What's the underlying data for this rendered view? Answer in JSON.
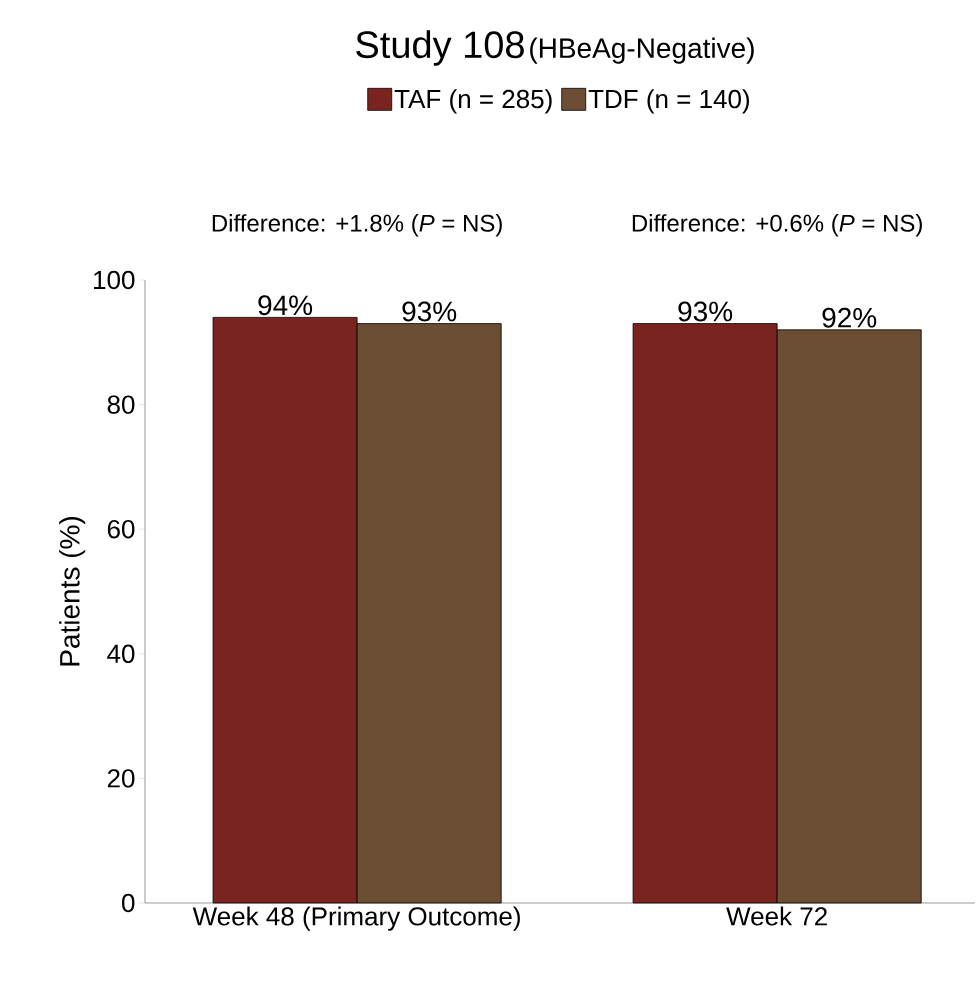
{
  "chart_data": {
    "type": "bar",
    "title": "Study 108",
    "subtitle": "(HBeAg-Negative)",
    "ylabel": "Patients (%)",
    "categories": [
      "Week 48 (Primary Outcome)",
      "Week 72"
    ],
    "series": [
      {
        "name": "TAF (n = 285)",
        "color": "#7a2420",
        "values": [
          94,
          93
        ],
        "value_labels": [
          "94%",
          "93%"
        ]
      },
      {
        "name": "TDF (n = 140)",
        "color": "#6b4e33",
        "values": [
          93,
          92
        ],
        "value_labels": [
          "93%",
          "92%"
        ]
      }
    ],
    "annotations": [
      "Difference: +1.8% (*P* = NS)",
      "Difference: +0.6% (*P* = NS)"
    ],
    "ylim": [
      0,
      100
    ],
    "yticks": [
      0,
      20,
      40,
      60,
      80,
      100
    ],
    "legend": "top",
    "grid": false
  }
}
